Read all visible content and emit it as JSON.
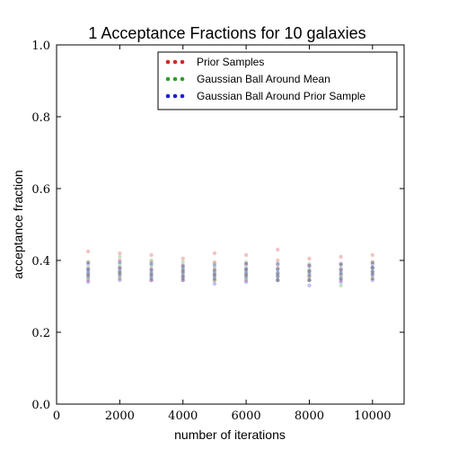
{
  "chart_data": {
    "type": "scatter",
    "title": "1 Acceptance Fractions for 10 galaxies",
    "xlabel": "number of iterations",
    "ylabel": "acceptance fraction",
    "xlim": [
      0,
      11000
    ],
    "ylim": [
      0.0,
      1.0
    ],
    "xticks": [
      0,
      2000,
      4000,
      6000,
      8000,
      10000
    ],
    "yticks": [
      0.0,
      0.2,
      0.4,
      0.6,
      0.8,
      1.0
    ],
    "xtick_labels": [
      "0",
      "2000",
      "4000",
      "6000",
      "8000",
      "10000"
    ],
    "ytick_labels": [
      "0.0",
      "0.2",
      "0.4",
      "0.6",
      "0.8",
      "1.0"
    ],
    "grid": false,
    "legend_position": "top-right",
    "series": [
      {
        "name": "Prior Samples",
        "color": "#d62728",
        "x": [
          1000,
          1000,
          1000,
          1000,
          1000,
          2000,
          2000,
          2000,
          2000,
          2000,
          3000,
          3000,
          3000,
          3000,
          3000,
          4000,
          4000,
          4000,
          4000,
          4000,
          5000,
          5000,
          5000,
          5000,
          5000,
          6000,
          6000,
          6000,
          6000,
          6000,
          7000,
          7000,
          7000,
          7000,
          7000,
          8000,
          8000,
          8000,
          8000,
          8000,
          9000,
          9000,
          9000,
          9000,
          9000,
          10000,
          10000,
          10000,
          10000,
          10000
        ],
        "y": [
          0.425,
          0.395,
          0.375,
          0.36,
          0.345,
          0.42,
          0.4,
          0.38,
          0.365,
          0.35,
          0.415,
          0.395,
          0.375,
          0.36,
          0.345,
          0.405,
          0.385,
          0.37,
          0.355,
          0.345,
          0.42,
          0.395,
          0.375,
          0.36,
          0.345,
          0.415,
          0.39,
          0.375,
          0.36,
          0.345,
          0.43,
          0.4,
          0.38,
          0.36,
          0.345,
          0.405,
          0.385,
          0.37,
          0.355,
          0.345,
          0.41,
          0.39,
          0.375,
          0.36,
          0.345,
          0.415,
          0.395,
          0.38,
          0.365,
          0.35
        ]
      },
      {
        "name": "Gaussian Ball Around Mean",
        "color": "#2ca02c",
        "x": [
          1000,
          1000,
          1000,
          1000,
          1000,
          2000,
          2000,
          2000,
          2000,
          2000,
          3000,
          3000,
          3000,
          3000,
          3000,
          4000,
          4000,
          4000,
          4000,
          4000,
          5000,
          5000,
          5000,
          5000,
          5000,
          6000,
          6000,
          6000,
          6000,
          6000,
          7000,
          7000,
          7000,
          7000,
          7000,
          8000,
          8000,
          8000,
          8000,
          8000,
          9000,
          9000,
          9000,
          9000,
          9000,
          10000,
          10000,
          10000,
          10000,
          10000
        ],
        "y": [
          0.395,
          0.38,
          0.37,
          0.36,
          0.35,
          0.41,
          0.39,
          0.375,
          0.365,
          0.355,
          0.4,
          0.385,
          0.37,
          0.36,
          0.35,
          0.395,
          0.38,
          0.37,
          0.36,
          0.35,
          0.39,
          0.375,
          0.365,
          0.355,
          0.345,
          0.395,
          0.38,
          0.37,
          0.36,
          0.35,
          0.39,
          0.375,
          0.365,
          0.355,
          0.345,
          0.39,
          0.375,
          0.365,
          0.355,
          0.345,
          0.385,
          0.37,
          0.36,
          0.35,
          0.33,
          0.395,
          0.38,
          0.37,
          0.36,
          0.35
        ]
      },
      {
        "name": "Gaussian Ball Around Prior Sample",
        "color": "#1f1fd6",
        "x": [
          1000,
          1000,
          1000,
          1000,
          1000,
          2000,
          2000,
          2000,
          2000,
          2000,
          3000,
          3000,
          3000,
          3000,
          3000,
          4000,
          4000,
          4000,
          4000,
          4000,
          5000,
          5000,
          5000,
          5000,
          5000,
          6000,
          6000,
          6000,
          6000,
          6000,
          7000,
          7000,
          7000,
          7000,
          7000,
          8000,
          8000,
          8000,
          8000,
          8000,
          9000,
          9000,
          9000,
          9000,
          9000,
          10000,
          10000,
          10000,
          10000,
          10000
        ],
        "y": [
          0.39,
          0.375,
          0.365,
          0.355,
          0.34,
          0.395,
          0.38,
          0.37,
          0.36,
          0.345,
          0.39,
          0.375,
          0.365,
          0.355,
          0.345,
          0.385,
          0.375,
          0.365,
          0.355,
          0.345,
          0.385,
          0.37,
          0.36,
          0.35,
          0.335,
          0.39,
          0.375,
          0.365,
          0.355,
          0.34,
          0.39,
          0.375,
          0.365,
          0.355,
          0.345,
          0.385,
          0.37,
          0.36,
          0.345,
          0.33,
          0.39,
          0.375,
          0.365,
          0.35,
          0.34,
          0.39,
          0.38,
          0.37,
          0.36,
          0.345
        ]
      }
    ]
  }
}
